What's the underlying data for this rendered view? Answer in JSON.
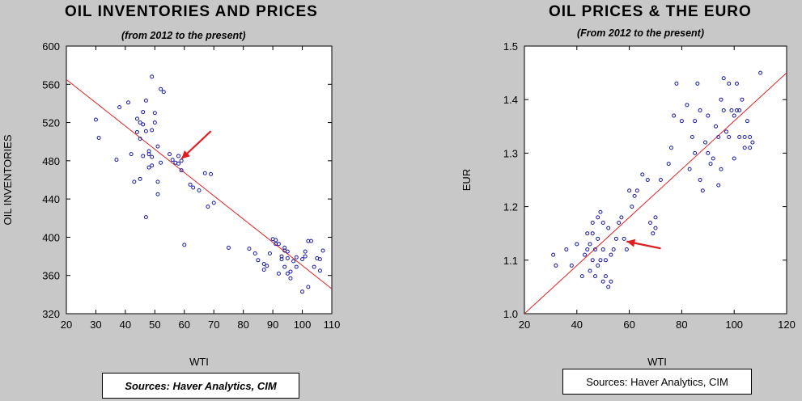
{
  "left": {
    "title": "OIL INVENTORIES AND PRICES",
    "subtitle": "(from 2012 to the present)",
    "sources": "Sources: Haver Analytics, CIM"
  },
  "right": {
    "title": "OIL PRICES & THE EURO",
    "subtitle": "(From 2012 to the present)",
    "sources": "Sources:  Haver Analytics, CIM"
  },
  "chart_data": [
    {
      "type": "scatter",
      "title": "OIL INVENTORIES AND PRICES",
      "subtitle": "(from 2012 to the present)",
      "xlabel": "WTI",
      "ylabel": "OIL INVENTORIES",
      "xlim": [
        20,
        110
      ],
      "ylim": [
        320,
        600
      ],
      "xticks": [
        20,
        30,
        40,
        50,
        60,
        70,
        80,
        90,
        100,
        110
      ],
      "yticks": [
        320,
        360,
        400,
        440,
        480,
        520,
        560,
        600
      ],
      "colors": {
        "points": "#1a1aa8",
        "fit": "#e02020",
        "arrow": "#e02020"
      },
      "fit_line": {
        "x": [
          20,
          110
        ],
        "y": [
          565,
          346
        ]
      },
      "annotation": {
        "type": "arrow",
        "from": [
          69,
          511
        ],
        "to": [
          59,
          482
        ]
      },
      "series": [
        {
          "x": [
            30,
            31,
            37,
            38,
            41,
            42,
            43,
            44,
            44,
            45,
            45,
            45,
            46,
            46,
            46,
            47,
            47,
            47,
            48,
            48,
            48,
            49,
            49,
            49,
            49,
            50,
            50,
            51,
            51,
            51,
            52,
            52,
            53,
            55,
            56,
            57,
            58,
            58,
            59,
            59,
            60,
            62,
            63,
            65,
            67,
            68,
            69,
            70,
            75,
            82,
            84,
            85,
            87,
            87,
            88,
            89,
            90,
            91,
            91,
            92,
            92,
            93,
            93,
            94,
            94,
            94,
            95,
            95,
            95,
            96,
            96,
            97,
            98,
            98,
            100,
            100,
            101,
            101,
            102,
            102,
            103,
            104,
            105,
            106,
            106,
            107
          ],
          "y": [
            523,
            504,
            481,
            536,
            541,
            487,
            458,
            510,
            524,
            520,
            461,
            503,
            485,
            518,
            531,
            511,
            421,
            543,
            473,
            490,
            487,
            512,
            475,
            484,
            568,
            530,
            520,
            495,
            445,
            458,
            478,
            555,
            552,
            487,
            481,
            478,
            485,
            477,
            480,
            470,
            392,
            455,
            452,
            449,
            467,
            432,
            466,
            436,
            389,
            388,
            383,
            376,
            366,
            372,
            370,
            383,
            398,
            393,
            397,
            393,
            362,
            380,
            377,
            369,
            389,
            386,
            385,
            378,
            362,
            357,
            364,
            375,
            369,
            379,
            377,
            343,
            380,
            385,
            396,
            348,
            396,
            369,
            378,
            377,
            365,
            386
          ]
        }
      ]
    },
    {
      "type": "scatter",
      "title": "OIL PRICES & THE EURO",
      "subtitle": "(From 2012 to the present)",
      "xlabel": "WTI",
      "ylabel": "EUR",
      "xlim": [
        20,
        120
      ],
      "ylim": [
        1.0,
        1.5
      ],
      "xticks": [
        20,
        40,
        60,
        80,
        100,
        120
      ],
      "yticks": [
        1.0,
        1.1,
        1.2,
        1.3,
        1.4,
        1.5
      ],
      "colors": {
        "points": "#1a1aa8",
        "fit": "#e02020",
        "arrow": "#e02020"
      },
      "fit_line": {
        "x": [
          20,
          120
        ],
        "y": [
          1.0,
          1.45
        ]
      },
      "annotation": {
        "type": "arrow",
        "from": [
          72,
          1.122
        ],
        "to": [
          59,
          1.135
        ]
      },
      "series": [
        {
          "x": [
            31,
            32,
            36,
            38,
            40,
            42,
            43,
            44,
            44,
            45,
            45,
            46,
            46,
            46,
            47,
            47,
            48,
            48,
            48,
            49,
            49,
            50,
            50,
            50,
            51,
            51,
            52,
            52,
            53,
            53,
            54,
            55,
            56,
            57,
            58,
            59,
            60,
            61,
            62,
            63,
            65,
            67,
            68,
            69,
            70,
            70,
            72,
            75,
            76,
            77,
            78,
            80,
            82,
            83,
            84,
            85,
            85,
            86,
            87,
            87,
            88,
            89,
            90,
            90,
            91,
            92,
            93,
            94,
            94,
            95,
            95,
            96,
            96,
            97,
            98,
            98,
            99,
            100,
            100,
            101,
            101,
            102,
            102,
            103,
            104,
            104,
            105,
            106,
            106,
            107,
            110
          ],
          "y": [
            1.11,
            1.09,
            1.12,
            1.09,
            1.13,
            1.07,
            1.11,
            1.12,
            1.15,
            1.08,
            1.13,
            1.1,
            1.15,
            1.17,
            1.07,
            1.12,
            1.14,
            1.18,
            1.09,
            1.1,
            1.19,
            1.06,
            1.12,
            1.17,
            1.07,
            1.1,
            1.05,
            1.16,
            1.06,
            1.11,
            1.12,
            1.14,
            1.17,
            1.18,
            1.14,
            1.12,
            1.23,
            1.2,
            1.22,
            1.23,
            1.26,
            1.25,
            1.17,
            1.15,
            1.18,
            1.16,
            1.25,
            1.28,
            1.31,
            1.37,
            1.43,
            1.36,
            1.39,
            1.27,
            1.33,
            1.36,
            1.3,
            1.43,
            1.38,
            1.25,
            1.23,
            1.32,
            1.3,
            1.37,
            1.28,
            1.29,
            1.35,
            1.33,
            1.24,
            1.27,
            1.4,
            1.44,
            1.38,
            1.34,
            1.43,
            1.33,
            1.38,
            1.29,
            1.37,
            1.38,
            1.43,
            1.33,
            1.38,
            1.4,
            1.31,
            1.33,
            1.36,
            1.33,
            1.31,
            1.32,
            1.45
          ]
        }
      ]
    }
  ]
}
